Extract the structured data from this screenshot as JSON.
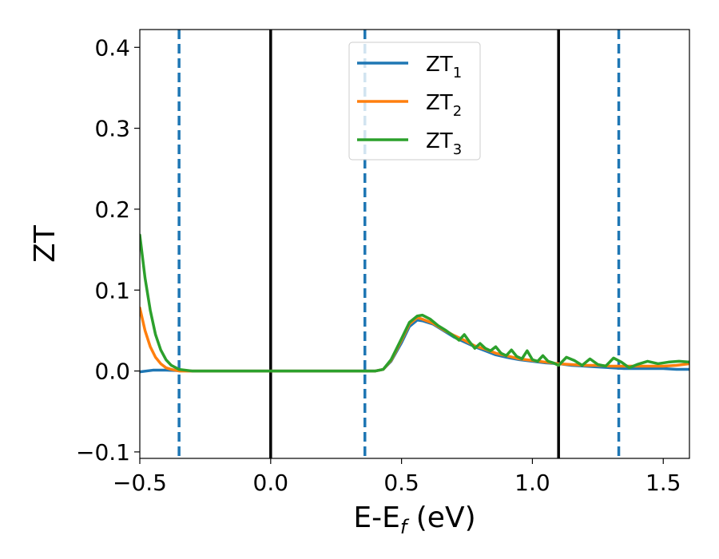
{
  "chart_data": {
    "type": "line",
    "xlabel": "E-E",
    "xlabel_sub": "f",
    "xlabel_unit": " (eV)",
    "ylabel": "ZT",
    "xlim": [
      -0.5,
      1.6
    ],
    "ylim": [
      -0.108,
      0.422
    ],
    "xticks": [
      -0.5,
      0.0,
      0.5,
      1.0,
      1.5
    ],
    "xtick_labels": [
      "−0.5",
      "0.0",
      "0.5",
      "1.0",
      "1.5"
    ],
    "yticks": [
      -0.1,
      0.0,
      0.1,
      0.2,
      0.3,
      0.4
    ],
    "ytick_labels": [
      "−0.1",
      "0.0",
      "0.1",
      "0.2",
      "0.3",
      "0.4"
    ],
    "grid": false,
    "legend_position": "top-center",
    "vlines_solid": [
      0.0,
      1.1
    ],
    "vlines_dashed": [
      -0.35,
      0.36,
      1.33
    ],
    "vline_solid_color": "#000000",
    "vline_dashed_color": "#1f77b4",
    "series": [
      {
        "name": "ZT",
        "sub": "1",
        "color": "#1f77b4",
        "x": [
          -0.5,
          -0.45,
          -0.4,
          -0.35,
          -0.3,
          -0.2,
          0.0,
          0.2,
          0.4,
          0.43,
          0.46,
          0.5,
          0.53,
          0.56,
          0.58,
          0.62,
          0.66,
          0.7,
          0.74,
          0.78,
          0.82,
          0.86,
          0.9,
          0.95,
          1.0,
          1.05,
          1.1,
          1.15,
          1.2,
          1.25,
          1.3,
          1.35,
          1.4,
          1.45,
          1.5,
          1.55,
          1.6
        ],
        "y": [
          -0.001,
          0.001,
          0.001,
          0.0005,
          0.0,
          0.0,
          0.0,
          0.0,
          0.0,
          0.002,
          0.012,
          0.035,
          0.055,
          0.063,
          0.062,
          0.058,
          0.05,
          0.042,
          0.036,
          0.03,
          0.025,
          0.02,
          0.017,
          0.014,
          0.012,
          0.01,
          0.009,
          0.007,
          0.006,
          0.005,
          0.004,
          0.003,
          0.003,
          0.003,
          0.003,
          0.002,
          0.002
        ]
      },
      {
        "name": "ZT",
        "sub": "2",
        "color": "#ff7f0e",
        "x": [
          -0.5,
          -0.48,
          -0.46,
          -0.44,
          -0.42,
          -0.4,
          -0.38,
          -0.35,
          -0.3,
          -0.2,
          0.0,
          0.2,
          0.4,
          0.43,
          0.46,
          0.5,
          0.53,
          0.56,
          0.58,
          0.62,
          0.66,
          0.7,
          0.74,
          0.78,
          0.82,
          0.86,
          0.9,
          0.95,
          1.0,
          1.05,
          1.1,
          1.15,
          1.2,
          1.25,
          1.3,
          1.35,
          1.4,
          1.45,
          1.5,
          1.55,
          1.6
        ],
        "y": [
          0.078,
          0.05,
          0.03,
          0.017,
          0.009,
          0.004,
          0.002,
          0.0,
          0.0,
          0.0,
          0.0,
          0.0,
          0.0,
          0.002,
          0.013,
          0.038,
          0.058,
          0.066,
          0.064,
          0.059,
          0.051,
          0.044,
          0.038,
          0.031,
          0.027,
          0.022,
          0.019,
          0.015,
          0.013,
          0.011,
          0.009,
          0.008,
          0.007,
          0.007,
          0.006,
          0.006,
          0.006,
          0.006,
          0.006,
          0.007,
          0.009
        ]
      },
      {
        "name": "ZT",
        "sub": "3",
        "color": "#2ca02c",
        "x": [
          -0.5,
          -0.48,
          -0.46,
          -0.44,
          -0.42,
          -0.4,
          -0.38,
          -0.35,
          -0.3,
          -0.2,
          0.0,
          0.2,
          0.4,
          0.43,
          0.46,
          0.5,
          0.53,
          0.56,
          0.58,
          0.61,
          0.64,
          0.67,
          0.7,
          0.72,
          0.74,
          0.76,
          0.78,
          0.8,
          0.82,
          0.84,
          0.86,
          0.88,
          0.9,
          0.92,
          0.94,
          0.96,
          0.98,
          1.0,
          1.02,
          1.04,
          1.06,
          1.08,
          1.1,
          1.13,
          1.16,
          1.19,
          1.22,
          1.25,
          1.28,
          1.31,
          1.34,
          1.37,
          1.4,
          1.44,
          1.48,
          1.52,
          1.56,
          1.6
        ],
        "y": [
          0.168,
          0.115,
          0.075,
          0.045,
          0.026,
          0.014,
          0.007,
          0.002,
          0.0,
          0.0,
          0.0,
          0.0,
          0.0,
          0.002,
          0.014,
          0.04,
          0.06,
          0.068,
          0.069,
          0.064,
          0.056,
          0.05,
          0.043,
          0.038,
          0.045,
          0.036,
          0.028,
          0.034,
          0.028,
          0.025,
          0.03,
          0.022,
          0.019,
          0.026,
          0.018,
          0.015,
          0.025,
          0.014,
          0.012,
          0.019,
          0.012,
          0.01,
          0.007,
          0.017,
          0.013,
          0.007,
          0.015,
          0.008,
          0.006,
          0.016,
          0.011,
          0.004,
          0.008,
          0.012,
          0.009,
          0.011,
          0.012,
          0.011
        ]
      }
    ]
  }
}
